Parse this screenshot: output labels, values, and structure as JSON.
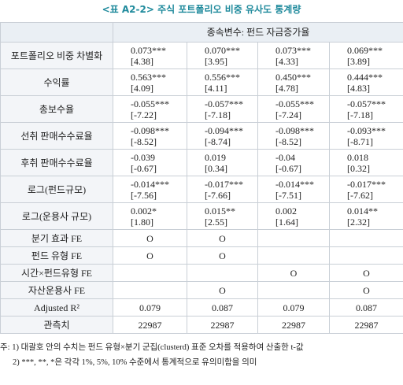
{
  "title": "<표 A2-2> 주식 포트폴리오 비중 유사도 통계량",
  "table": {
    "header": "종속변수: 펀드 자금증가율",
    "rows": [
      {
        "label": "포트폴리오 비중 차별화",
        "cells": [
          [
            "0.073***",
            "[4.38]"
          ],
          [
            "0.070***",
            "[3.95]"
          ],
          [
            "0.073***",
            "[4.33]"
          ],
          [
            "0.069***",
            "[3.89]"
          ]
        ]
      },
      {
        "label": "수익률",
        "cells": [
          [
            "0.563***",
            "[4.09]"
          ],
          [
            "0.556***",
            "[4.11]"
          ],
          [
            "0.450***",
            "[4.78]"
          ],
          [
            "0.444***",
            "[4.83]"
          ]
        ]
      },
      {
        "label": "총보수율",
        "cells": [
          [
            "-0.055***",
            "[-7.22]"
          ],
          [
            "-0.057***",
            "[-7.18]"
          ],
          [
            "-0.055***",
            "[-7.24]"
          ],
          [
            "-0.057***",
            "[-7.18]"
          ]
        ]
      },
      {
        "label": "선취 판매수수료율",
        "cells": [
          [
            "-0.098***",
            "[-8.52]"
          ],
          [
            "-0.094***",
            "[-8.74]"
          ],
          [
            "-0.098***",
            "[-8.52]"
          ],
          [
            "-0.093***",
            "[-8.71]"
          ]
        ]
      },
      {
        "label": "후취 판매수수료율",
        "cells": [
          [
            "-0.039",
            "[-0.67]"
          ],
          [
            "0.019",
            "[0.34]"
          ],
          [
            "-0.04",
            "[-0.67]"
          ],
          [
            "0.018",
            "[0.32]"
          ]
        ]
      },
      {
        "label": "로그(펀드규모)",
        "cells": [
          [
            "-0.014***",
            "[-7.56]"
          ],
          [
            "-0.017***",
            "[-7.66]"
          ],
          [
            "-0.014***",
            "[-7.51]"
          ],
          [
            "-0.017***",
            "[-7.62]"
          ]
        ]
      },
      {
        "label": "로그(운용사 규모)",
        "cells": [
          [
            "0.002*",
            "[1.80]"
          ],
          [
            "0.015**",
            "[2.55]"
          ],
          [
            "0.002",
            "[1.64]"
          ],
          [
            "0.014**",
            "[2.32]"
          ]
        ]
      },
      {
        "label": "분기 효과 FE",
        "cells": [
          "O",
          "O",
          null,
          null
        ]
      },
      {
        "label": "펀드 유형 FE",
        "cells": [
          "O",
          "O",
          null,
          null
        ]
      },
      {
        "label": "시간×펀드유형 FE",
        "cells": [
          null,
          null,
          "O",
          "O"
        ]
      },
      {
        "label": "자산운용사 FE",
        "cells": [
          null,
          "O",
          null,
          "O"
        ]
      },
      {
        "label": "Adjusted R²",
        "cells": [
          "0.079",
          "0.087",
          "0.079",
          "0.087"
        ]
      },
      {
        "label": "관측치",
        "cells": [
          "22987",
          "22987",
          "22987",
          "22987"
        ]
      }
    ]
  },
  "notes": [
    "주: 1) 대괄호 안의 수치는 펀드 유형×분기 군집(clusterd) 표준 오차를 적용하여 산출한 t-값",
    "2) ***, **, *은 각각 1%, 5%, 10% 수준에서 통계적으로 유의미함을 의미"
  ]
}
